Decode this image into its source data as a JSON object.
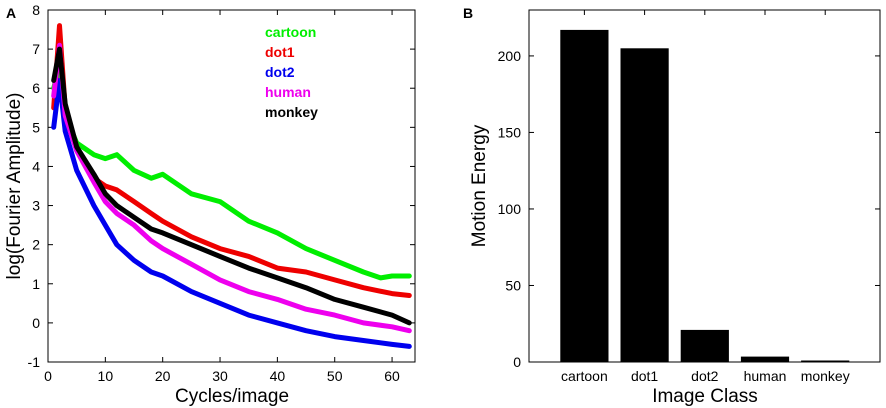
{
  "chart_data": [
    {
      "panel": "A",
      "type": "line",
      "title": "",
      "xlabel": "Cycles/image",
      "ylabel": "log(Fourier Amplitude)",
      "xlim": [
        0,
        64
      ],
      "ylim": [
        -1,
        8
      ],
      "xticks": [
        0,
        10,
        20,
        30,
        40,
        50,
        60
      ],
      "yticks": [
        -1,
        0,
        1,
        2,
        3,
        4,
        5,
        6,
        7,
        8
      ],
      "legend_position": "top-right",
      "series": [
        {
          "name": "cartoon",
          "color": "#00ee00",
          "x": [
            1,
            2,
            3,
            5,
            8,
            10,
            12,
            15,
            18,
            20,
            25,
            30,
            35,
            40,
            45,
            50,
            55,
            58,
            60,
            63
          ],
          "y": [
            6.0,
            6.6,
            5.3,
            4.6,
            4.3,
            4.2,
            4.3,
            3.9,
            3.7,
            3.8,
            3.3,
            3.1,
            2.6,
            2.3,
            1.9,
            1.6,
            1.3,
            1.15,
            1.2,
            1.2
          ]
        },
        {
          "name": "dot1",
          "color": "#ee0000",
          "x": [
            1,
            2,
            3,
            5,
            8,
            10,
            12,
            15,
            18,
            20,
            25,
            30,
            35,
            40,
            45,
            50,
            55,
            60,
            63
          ],
          "y": [
            5.5,
            7.6,
            5.5,
            4.5,
            3.7,
            3.5,
            3.4,
            3.1,
            2.8,
            2.6,
            2.2,
            1.9,
            1.7,
            1.4,
            1.3,
            1.1,
            0.9,
            0.75,
            0.7
          ]
        },
        {
          "name": "dot2",
          "color": "#0000ee",
          "x": [
            1,
            2,
            3,
            5,
            8,
            10,
            12,
            15,
            18,
            20,
            25,
            30,
            35,
            40,
            45,
            50,
            55,
            60,
            63
          ],
          "y": [
            5.0,
            6.2,
            4.9,
            3.9,
            3.0,
            2.5,
            2.0,
            1.6,
            1.3,
            1.2,
            0.8,
            0.5,
            0.2,
            0.0,
            -0.2,
            -0.35,
            -0.45,
            -0.55,
            -0.6
          ]
        },
        {
          "name": "human",
          "color": "#ee00ee",
          "x": [
            1,
            2,
            3,
            5,
            8,
            10,
            12,
            15,
            18,
            20,
            25,
            30,
            35,
            40,
            45,
            50,
            55,
            60,
            63
          ],
          "y": [
            5.8,
            7.1,
            5.3,
            4.4,
            3.6,
            3.1,
            2.8,
            2.5,
            2.1,
            1.9,
            1.5,
            1.1,
            0.8,
            0.6,
            0.35,
            0.2,
            0.0,
            -0.1,
            -0.2
          ]
        },
        {
          "name": "monkey",
          "color": "#000000",
          "x": [
            1,
            2,
            3,
            5,
            8,
            10,
            12,
            15,
            18,
            20,
            25,
            30,
            35,
            40,
            45,
            50,
            55,
            60,
            63
          ],
          "y": [
            6.2,
            7.0,
            5.6,
            4.5,
            3.8,
            3.3,
            3.0,
            2.7,
            2.4,
            2.3,
            2.0,
            1.7,
            1.4,
            1.15,
            0.9,
            0.6,
            0.4,
            0.2,
            0.0
          ]
        }
      ]
    },
    {
      "panel": "B",
      "type": "bar",
      "title": "",
      "xlabel": "Image Class",
      "ylabel": "Motion Energy",
      "categories": [
        "cartoon",
        "dot1",
        "dot2",
        "human",
        "monkey"
      ],
      "values": [
        217,
        205,
        21,
        3.5,
        1
      ],
      "ylim": [
        0,
        230
      ],
      "yticks": [
        0,
        50,
        100,
        150,
        200
      ],
      "bar_color": "#000000"
    }
  ]
}
